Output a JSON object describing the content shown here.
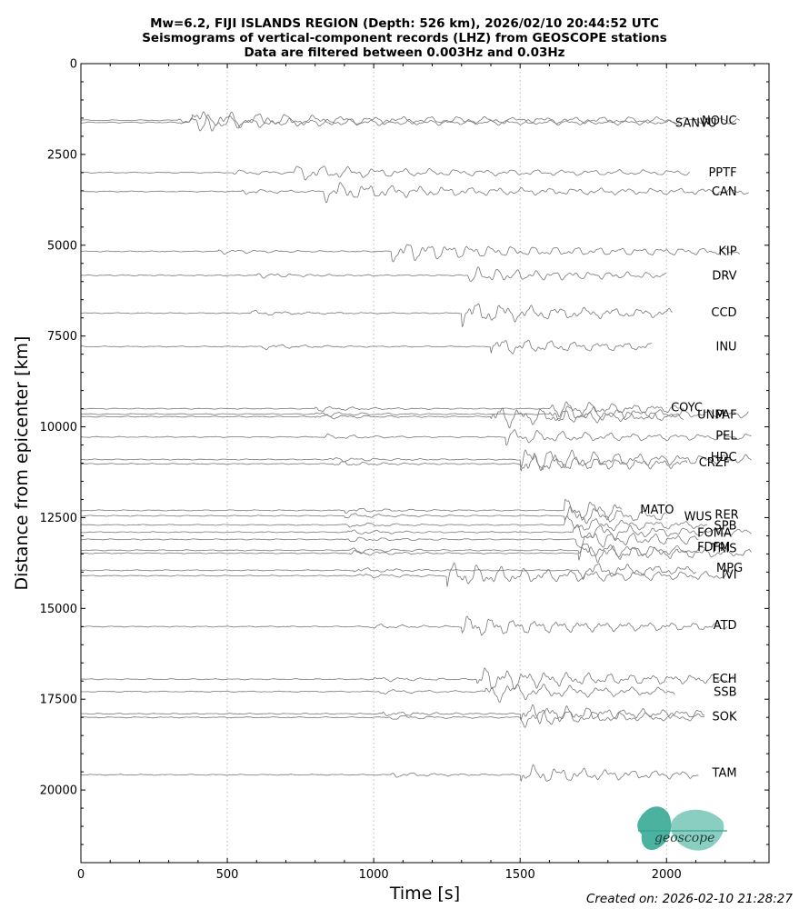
{
  "title_lines": [
    "Mw=6.2, FIJI ISLANDS REGION (Depth: 526 km), 2026/02/10 20:44:52 UTC",
    "Seismograms of vertical-component records (LHZ) from GEOSCOPE stations",
    "Data are filtered between 0.003Hz and 0.03Hz"
  ],
  "created_on": "Created on: 2026-02-10 21:28:27",
  "logo_text": "geoscope",
  "colors": {
    "trace": "#777777",
    "logo": "#2aa58e",
    "grid": "#bbbbbb"
  },
  "chart_data": {
    "type": "line",
    "xlabel": "Time [s]",
    "ylabel": "Distance from epicenter [km]",
    "xlim": [
      0,
      2350
    ],
    "ylim": [
      22000,
      0
    ],
    "xticks": [
      0,
      500,
      1000,
      1500,
      2000
    ],
    "yticks": [
      0,
      2500,
      5000,
      7500,
      10000,
      12500,
      15000,
      17500,
      20000
    ],
    "grid": "vertical dotted lines at x ticks",
    "stations": [
      {
        "name": "NOUC",
        "distance": 1560,
        "end": 2250,
        "p": 330,
        "s": 380,
        "amp": 1.3
      },
      {
        "name": "SANVU",
        "distance": 1620,
        "end": 2045,
        "p": 340,
        "s": 370,
        "amp": 0.9
      },
      {
        "name": "PPTF",
        "distance": 3000,
        "end": 2080,
        "p": 520,
        "s": 720,
        "amp": 1.0
      },
      {
        "name": "CAN",
        "distance": 3520,
        "end": 2280,
        "p": 550,
        "s": 830,
        "amp": 1.2
      },
      {
        "name": "KIP",
        "distance": 5170,
        "end": 2250,
        "p": 470,
        "s": 1060,
        "amp": 1.4
      },
      {
        "name": "DRV",
        "distance": 5830,
        "end": 2000,
        "p": 600,
        "s": 1320,
        "amp": 1.0
      },
      {
        "name": "CCD",
        "distance": 6870,
        "end": 2020,
        "p": 580,
        "s": 1300,
        "amp": 1.5
      },
      {
        "name": "INU",
        "distance": 7790,
        "end": 1950,
        "p": 620,
        "s": 1400,
        "amp": 1.1
      },
      {
        "name": "COYC",
        "distance": 9500,
        "end": 2060,
        "p": 800,
        "s": 1600,
        "amp": 1.0
      },
      {
        "name": "UNM",
        "distance": 9720,
        "end": 2060,
        "p": 800,
        "s": 1400,
        "amp": 1.4
      },
      {
        "name": "PAF",
        "distance": 9650,
        "end": 2280,
        "p": 800,
        "s": 1600,
        "amp": 1.2
      },
      {
        "name": "PEL",
        "distance": 10280,
        "end": 2290,
        "p": 830,
        "s": 1450,
        "amp": 1.0
      },
      {
        "name": "HDC",
        "distance": 10900,
        "end": 2290,
        "p": 840,
        "s": 1500,
        "amp": 1.6
      },
      {
        "name": "CRZF",
        "distance": 11020,
        "end": 2070,
        "p": 860,
        "s": 1500,
        "amp": 1.3
      },
      {
        "name": "MATO",
        "distance": 12300,
        "end": 1850,
        "p": 900,
        "s": 1650,
        "amp": 1.5
      },
      {
        "name": "WUS",
        "distance": 12450,
        "end": 2000,
        "p": 900,
        "s": 1650,
        "amp": 1.2
      },
      {
        "name": "RER",
        "distance": 12700,
        "end": 2140,
        "p": 900,
        "s": 1650,
        "amp": 1.0
      },
      {
        "name": "SPB",
        "distance": 12900,
        "end": 2290,
        "p": 910,
        "s": 1680,
        "amp": 1.1
      },
      {
        "name": "FOMA",
        "distance": 13100,
        "end": 2110,
        "p": 910,
        "s": 1690,
        "amp": 1.2
      },
      {
        "name": "FDFM",
        "distance": 13400,
        "end": 2140,
        "p": 920,
        "s": 1700,
        "amp": 1.0
      },
      {
        "name": "TRIS",
        "distance": 13480,
        "end": 2290,
        "p": 920,
        "s": 1700,
        "amp": 1.2
      },
      {
        "name": "MPG",
        "distance": 13950,
        "end": 2100,
        "p": 930,
        "s": 1700,
        "amp": 1.0
      },
      {
        "name": "IVI",
        "distance": 14100,
        "end": 2220,
        "p": 940,
        "s": 1250,
        "amp": 1.6
      },
      {
        "name": "ATD",
        "distance": 15500,
        "end": 2210,
        "p": 980,
        "s": 1300,
        "amp": 1.4
      },
      {
        "name": "ECH",
        "distance": 16950,
        "end": 2230,
        "p": 1000,
        "s": 1350,
        "amp": 1.6
      },
      {
        "name": "SSB",
        "distance": 17290,
        "end": 2030,
        "p": 1010,
        "s": 1380,
        "amp": 1.3
      },
      {
        "name": "SOK",
        "distance": 17900,
        "end": 2130,
        "p": 1030,
        "s": 1500,
        "amp": 1.3
      },
      {
        "name": "SOK",
        "distance": 18000,
        "end": 2130,
        "p": 1030,
        "s": 1500,
        "amp": 1.2
      },
      {
        "name": "TAM",
        "distance": 19580,
        "end": 2110,
        "p": 1060,
        "s": 1500,
        "amp": 1.2
      }
    ],
    "label_positions": {
      "NOUC": {
        "x": 2240,
        "y": 1560,
        "anchor": "end"
      },
      "SANVU": {
        "x": 2030,
        "y": 1630,
        "anchor": "start"
      },
      "PPTF": {
        "x": 2240,
        "y": 2990,
        "anchor": "end"
      },
      "CAN": {
        "x": 2240,
        "y": 3520,
        "anchor": "end"
      },
      "KIP": {
        "x": 2240,
        "y": 5160,
        "anchor": "end"
      },
      "DRV": {
        "x": 2240,
        "y": 5830,
        "anchor": "end"
      },
      "CCD": {
        "x": 2240,
        "y": 6850,
        "anchor": "end"
      },
      "INU": {
        "x": 2240,
        "y": 7790,
        "anchor": "end"
      },
      "COYC": {
        "x": 2015,
        "y": 9460,
        "anchor": "start"
      },
      "UNM": {
        "x": 2105,
        "y": 9660,
        "anchor": "start"
      },
      "PAF": {
        "x": 2240,
        "y": 9660,
        "anchor": "end"
      },
      "PEL": {
        "x": 2240,
        "y": 10240,
        "anchor": "end"
      },
      "HDC": {
        "x": 2240,
        "y": 10820,
        "anchor": "end"
      },
      "CRZF": {
        "x": 2110,
        "y": 10970,
        "anchor": "start"
      },
      "MATO": {
        "x": 1910,
        "y": 12280,
        "anchor": "start"
      },
      "WUS": {
        "x": 2060,
        "y": 12460,
        "anchor": "start"
      },
      "RER": {
        "x": 2165,
        "y": 12420,
        "anchor": "start"
      },
      "SPB": {
        "x": 2240,
        "y": 12720,
        "anchor": "end"
      },
      "FOMA": {
        "x": 2105,
        "y": 12910,
        "anchor": "start"
      },
      "FDFM": {
        "x": 2105,
        "y": 13300,
        "anchor": "start"
      },
      "TRIS": {
        "x": 2240,
        "y": 13340,
        "anchor": "end"
      },
      "MPG": {
        "x": 2170,
        "y": 13880,
        "anchor": "start"
      },
      "IVI": {
        "x": 2240,
        "y": 14070,
        "anchor": "end"
      },
      "ATD": {
        "x": 2240,
        "y": 15450,
        "anchor": "end"
      },
      "ECH": {
        "x": 2240,
        "y": 16930,
        "anchor": "end"
      },
      "SSB": {
        "x": 2240,
        "y": 17300,
        "anchor": "end"
      },
      "SOK": {
        "x": 2240,
        "y": 17970,
        "anchor": "end"
      },
      "TAM": {
        "x": 2240,
        "y": 19520,
        "anchor": "end"
      }
    }
  }
}
